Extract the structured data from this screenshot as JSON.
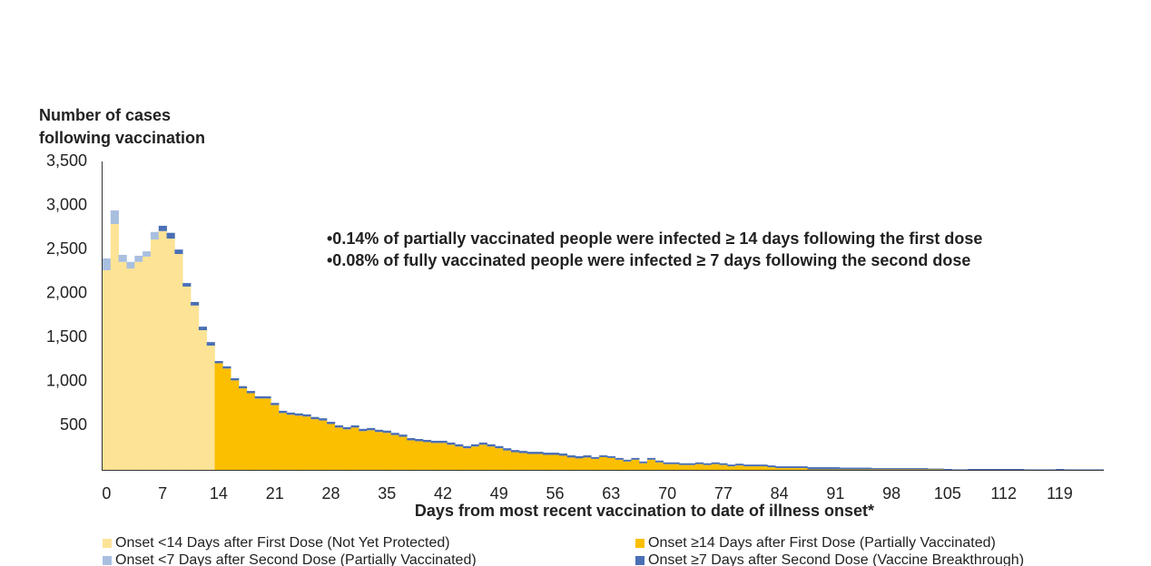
{
  "chart_data": {
    "type": "bar",
    "stacked": true,
    "ylabel": [
      "Number of cases",
      "following vaccination"
    ],
    "xlabel": "Days from most recent vaccination to date of illness onset*",
    "annotations": [
      "•0.14% of partially vaccinated people were infected ≥ 14 days following the first dose",
      "•0.08% of fully vaccinated people were infected ≥ 7 days following the second dose"
    ],
    "ylim": [
      0,
      3500
    ],
    "yticks": [
      500,
      {
        "value": 1000,
        "label": "1,000"
      },
      {
        "value": 1500,
        "label": "1,500"
      },
      {
        "value": 2000,
        "label": "2,000"
      },
      {
        "value": 2500,
        "label": "2,500"
      },
      {
        "value": 3000,
        "label": "3,000"
      },
      {
        "value": 3500,
        "label": "3,500"
      }
    ],
    "xlim": [
      0,
      125
    ],
    "xticks": [
      0,
      7,
      14,
      21,
      28,
      35,
      42,
      49,
      56,
      63,
      70,
      77,
      84,
      91,
      98,
      105,
      112,
      119
    ],
    "grid": false,
    "x": [
      0,
      1,
      2,
      3,
      4,
      5,
      6,
      7,
      8,
      9,
      10,
      11,
      12,
      13,
      14,
      15,
      16,
      17,
      18,
      19,
      20,
      21,
      22,
      23,
      24,
      25,
      26,
      27,
      28,
      29,
      30,
      31,
      32,
      33,
      34,
      35,
      36,
      37,
      38,
      39,
      40,
      41,
      42,
      43,
      44,
      45,
      46,
      47,
      48,
      49,
      50,
      51,
      52,
      53,
      54,
      55,
      56,
      57,
      58,
      59,
      60,
      61,
      62,
      63,
      64,
      65,
      66,
      67,
      68,
      69,
      70,
      71,
      72,
      73,
      74,
      75,
      76,
      77,
      78,
      79,
      80,
      81,
      82,
      83,
      84,
      85,
      86,
      87,
      88,
      89,
      90,
      91,
      92,
      93,
      94,
      95,
      96,
      97,
      98,
      99,
      100,
      101,
      102,
      103,
      104,
      105,
      106,
      107,
      108,
      109,
      110,
      111,
      112,
      113,
      114,
      115,
      116,
      117,
      118,
      119,
      120,
      121,
      122,
      123,
      124
    ],
    "series": [
      {
        "name": "Onset <14 Days after First Dose (Not Yet Protected)",
        "color": "#fde395",
        "values": [
          2265,
          2790,
          2360,
          2285,
          2360,
          2420,
          2615,
          2710,
          2625,
          2450,
          2080,
          1865,
          1585,
          1410,
          null,
          null,
          null,
          null,
          null,
          null,
          null,
          null,
          null,
          null,
          null,
          null,
          null,
          null,
          null,
          null,
          null,
          null,
          null,
          null,
          null,
          null,
          null,
          null,
          null,
          null,
          null,
          null,
          null,
          null,
          null,
          null,
          null,
          null,
          null,
          null,
          null,
          null,
          null,
          null,
          null,
          null,
          null,
          null,
          null,
          null,
          null,
          null,
          null,
          null,
          null,
          null,
          null,
          null,
          null,
          null,
          null,
          null,
          null,
          null,
          null,
          null,
          null,
          null,
          null,
          null,
          null,
          null,
          null,
          null,
          null,
          null,
          null,
          null,
          null,
          null,
          null,
          null,
          null,
          null,
          null,
          null,
          null,
          null,
          null,
          null,
          null,
          null,
          null,
          null,
          null,
          null,
          null,
          null,
          null,
          null,
          null,
          null,
          null,
          null,
          null,
          null,
          null,
          null,
          null,
          null,
          null,
          null,
          null,
          null,
          null
        ]
      },
      {
        "name": "Onset ≥14 Days after First Dose (Partially Vaccinated)",
        "color": "#fbbf00",
        "values": [
          null,
          null,
          null,
          null,
          null,
          null,
          null,
          null,
          null,
          null,
          null,
          null,
          null,
          null,
          1210,
          1150,
          1015,
          925,
          870,
          810,
          810,
          735,
          645,
          625,
          615,
          605,
          575,
          560,
          520,
          480,
          460,
          480,
          440,
          450,
          430,
          420,
          395,
          375,
          335,
          325,
          315,
          305,
          305,
          285,
          265,
          245,
          265,
          285,
          265,
          245,
          220,
          200,
          190,
          180,
          180,
          170,
          170,
          160,
          140,
          130,
          140,
          125,
          145,
          135,
          115,
          95,
          115,
          75,
          115,
          85,
          65,
          65,
          55,
          55,
          65,
          55,
          65,
          55,
          40,
          50,
          40,
          40,
          40,
          30,
          20,
          20,
          20,
          20,
          5,
          5,
          5,
          5,
          5,
          5,
          5,
          5,
          5,
          5,
          5,
          5,
          5,
          5,
          5,
          5,
          5,
          0,
          0,
          0,
          0,
          0,
          0,
          0,
          0,
          0,
          0,
          0,
          0,
          0,
          0,
          0,
          0,
          0,
          0,
          0,
          0
        ]
      },
      {
        "name": "Onset <7 Days after Second Dose (Partially Vaccinated)",
        "color": "#a9bfe0",
        "values": [
          135,
          155,
          80,
          75,
          70,
          60,
          85,
          null,
          null,
          null,
          null,
          null,
          null,
          null,
          null,
          null,
          null,
          null,
          null,
          null,
          null,
          null,
          null,
          null,
          null,
          null,
          null,
          null,
          null,
          null,
          null,
          null,
          null,
          null,
          null,
          null,
          null,
          null,
          null,
          null,
          null,
          null,
          null,
          null,
          null,
          null,
          null,
          null,
          null,
          null,
          null,
          null,
          null,
          null,
          null,
          null,
          null,
          null,
          null,
          null,
          null,
          null,
          null,
          null,
          null,
          null,
          null,
          null,
          null,
          null,
          null,
          null,
          null,
          null,
          null,
          null,
          null,
          null,
          null,
          null,
          null,
          null,
          null,
          null,
          null,
          null,
          null,
          null,
          null,
          null,
          null,
          null,
          null,
          null,
          null,
          null,
          null,
          null,
          null,
          null,
          null,
          null,
          null,
          null,
          null,
          null,
          null,
          null,
          null,
          null,
          null,
          null,
          null,
          null,
          null,
          null,
          null,
          null,
          null,
          null,
          null,
          null,
          null,
          null,
          null
        ]
      },
      {
        "name": "Onset ≥7 Days after Second Dose (Vaccine Breakthrough)",
        "color": "#4a6fb5",
        "values": [
          null,
          null,
          null,
          null,
          null,
          null,
          null,
          60,
          65,
          50,
          40,
          40,
          40,
          40,
          25,
          25,
          25,
          25,
          25,
          25,
          25,
          25,
          25,
          25,
          25,
          25,
          25,
          25,
          25,
          25,
          25,
          25,
          25,
          25,
          25,
          25,
          25,
          25,
          25,
          25,
          25,
          25,
          25,
          25,
          25,
          25,
          25,
          25,
          25,
          25,
          25,
          25,
          25,
          25,
          25,
          25,
          25,
          25,
          25,
          25,
          25,
          20,
          20,
          20,
          20,
          20,
          20,
          20,
          20,
          20,
          20,
          20,
          20,
          20,
          20,
          20,
          20,
          20,
          20,
          20,
          20,
          20,
          20,
          20,
          20,
          20,
          20,
          20,
          25,
          25,
          25,
          25,
          20,
          20,
          20,
          20,
          15,
          15,
          15,
          15,
          15,
          15,
          15,
          10,
          10,
          10,
          5,
          5,
          10,
          10,
          10,
          10,
          10,
          10,
          10,
          5,
          5,
          5,
          5,
          10,
          5,
          5,
          5,
          5,
          5
        ]
      }
    ]
  }
}
